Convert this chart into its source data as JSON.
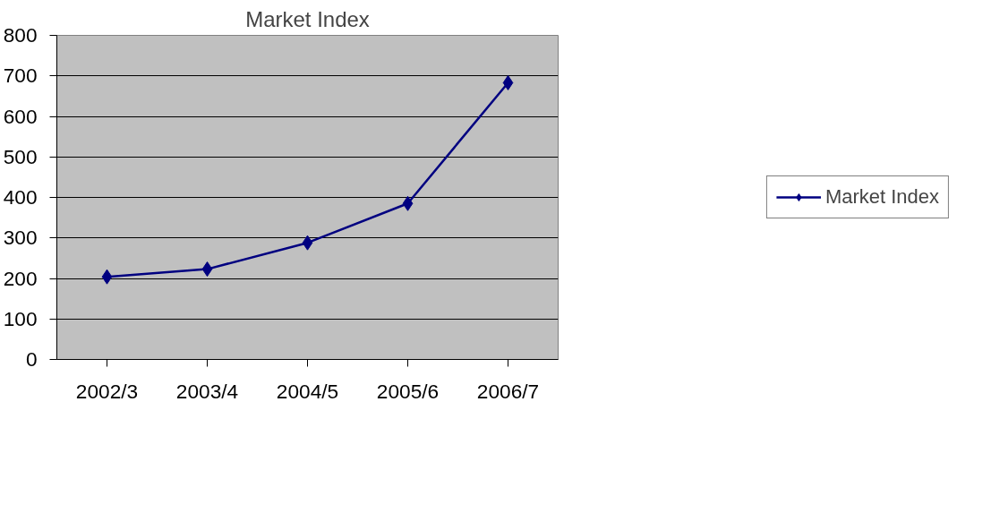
{
  "chart_data": {
    "type": "line",
    "title": "Market Index",
    "categories": [
      "2002/3",
      "2003/4",
      "2004/5",
      "2005/6",
      "2006/7"
    ],
    "series": [
      {
        "name": "Market Index",
        "color": "#000080",
        "values": [
          204,
          223,
          288,
          385,
          683
        ]
      }
    ],
    "ylim": [
      0,
      800
    ],
    "yticks": [
      0,
      100,
      200,
      300,
      400,
      500,
      600,
      700,
      800
    ],
    "grid": "y",
    "legend": "right",
    "marker": "diamond",
    "line_style": "solid"
  }
}
